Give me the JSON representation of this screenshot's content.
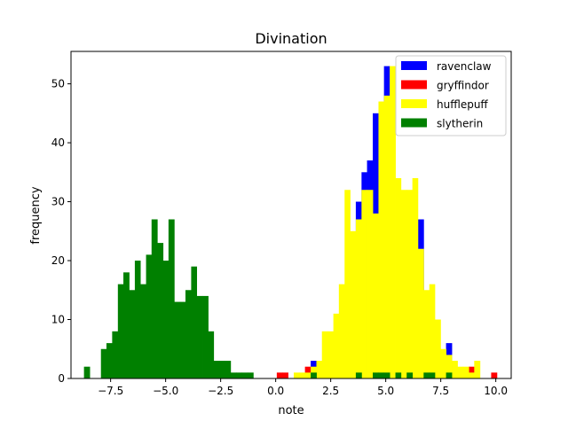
{
  "chart_data": {
    "type": "bar",
    "title": "Divination",
    "xlabel": "note",
    "ylabel": "frequency",
    "xlim": [
      -9.3,
      10.7
    ],
    "ylim": [
      0,
      55.5
    ],
    "x_ticks": [
      -7.5,
      -5.0,
      -2.5,
      0.0,
      2.5,
      5.0,
      7.5,
      10.0
    ],
    "x_tick_labels": [
      "−7.5",
      "−5.0",
      "−2.5",
      "0.0",
      "2.5",
      "5.0",
      "7.5",
      "10.0"
    ],
    "y_ticks": [
      0,
      10,
      20,
      30,
      40,
      50
    ],
    "y_tick_labels": [
      "0",
      "10",
      "20",
      "30",
      "40",
      "50"
    ],
    "legend_position": "upper-right",
    "grid": false,
    "histogram_style": "stacked step bars, overlapping",
    "series": [
      {
        "name": "ravenclaw",
        "color": "#0000ff",
        "bins": [
          {
            "x0": 1.59,
            "x1": 1.85,
            "count": 3
          },
          {
            "x0": 3.64,
            "x1": 3.9,
            "count": 30
          },
          {
            "x0": 3.9,
            "x1": 4.15,
            "count": 35
          },
          {
            "x0": 4.15,
            "x1": 4.41,
            "count": 37
          },
          {
            "x0": 4.41,
            "x1": 4.67,
            "count": 45
          },
          {
            "x0": 4.92,
            "x1": 5.18,
            "count": 53
          },
          {
            "x0": 6.46,
            "x1": 6.72,
            "count": 27
          },
          {
            "x0": 7.74,
            "x1": 8.0,
            "count": 6
          }
        ]
      },
      {
        "name": "gryffindor",
        "color": "#ff0000",
        "bins": [
          {
            "x0": 0.05,
            "x1": 0.31,
            "count": 1
          },
          {
            "x0": 0.31,
            "x1": 0.56,
            "count": 1
          },
          {
            "x0": 1.33,
            "x1": 1.59,
            "count": 2
          },
          {
            "x0": 8.77,
            "x1": 9.02,
            "count": 2
          },
          {
            "x0": 9.79,
            "x1": 10.05,
            "count": 1
          }
        ]
      },
      {
        "name": "hufflepuff",
        "color": "#ffff00",
        "bins": [
          {
            "x0": 0.82,
            "x1": 1.08,
            "count": 1
          },
          {
            "x0": 1.08,
            "x1": 1.33,
            "count": 1
          },
          {
            "x0": 1.33,
            "x1": 1.59,
            "count": 1
          },
          {
            "x0": 1.59,
            "x1": 1.85,
            "count": 2
          },
          {
            "x0": 1.85,
            "x1": 2.1,
            "count": 3
          },
          {
            "x0": 2.1,
            "x1": 2.36,
            "count": 8
          },
          {
            "x0": 2.36,
            "x1": 2.62,
            "count": 8
          },
          {
            "x0": 2.62,
            "x1": 2.87,
            "count": 11
          },
          {
            "x0": 2.87,
            "x1": 3.13,
            "count": 16
          },
          {
            "x0": 3.13,
            "x1": 3.38,
            "count": 32
          },
          {
            "x0": 3.38,
            "x1": 3.64,
            "count": 25
          },
          {
            "x0": 3.64,
            "x1": 3.9,
            "count": 27
          },
          {
            "x0": 3.9,
            "x1": 4.15,
            "count": 32
          },
          {
            "x0": 4.15,
            "x1": 4.41,
            "count": 32
          },
          {
            "x0": 4.41,
            "x1": 4.67,
            "count": 28
          },
          {
            "x0": 4.67,
            "x1": 4.92,
            "count": 47
          },
          {
            "x0": 4.92,
            "x1": 5.18,
            "count": 48
          },
          {
            "x0": 5.18,
            "x1": 5.44,
            "count": 53
          },
          {
            "x0": 5.44,
            "x1": 5.69,
            "count": 34
          },
          {
            "x0": 5.69,
            "x1": 5.95,
            "count": 32
          },
          {
            "x0": 5.95,
            "x1": 6.21,
            "count": 32
          },
          {
            "x0": 6.21,
            "x1": 6.46,
            "count": 34
          },
          {
            "x0": 6.46,
            "x1": 6.72,
            "count": 22
          },
          {
            "x0": 6.72,
            "x1": 6.98,
            "count": 15
          },
          {
            "x0": 6.98,
            "x1": 7.23,
            "count": 16
          },
          {
            "x0": 7.23,
            "x1": 7.49,
            "count": 10
          },
          {
            "x0": 7.49,
            "x1": 7.74,
            "count": 5
          },
          {
            "x0": 7.74,
            "x1": 8.0,
            "count": 4
          },
          {
            "x0": 8.0,
            "x1": 8.26,
            "count": 3
          },
          {
            "x0": 8.26,
            "x1": 8.51,
            "count": 2
          },
          {
            "x0": 8.51,
            "x1": 8.77,
            "count": 2
          },
          {
            "x0": 8.77,
            "x1": 9.02,
            "count": 1
          },
          {
            "x0": 9.02,
            "x1": 9.28,
            "count": 3
          }
        ]
      },
      {
        "name": "slytherin",
        "color": "#008000",
        "bins": [
          {
            "x0": -8.71,
            "x1": -8.45,
            "count": 2
          },
          {
            "x0": -7.94,
            "x1": -7.69,
            "count": 5
          },
          {
            "x0": -7.69,
            "x1": -7.43,
            "count": 6
          },
          {
            "x0": -7.43,
            "x1": -7.17,
            "count": 8
          },
          {
            "x0": -7.17,
            "x1": -6.92,
            "count": 16
          },
          {
            "x0": -6.92,
            "x1": -6.66,
            "count": 18
          },
          {
            "x0": -6.66,
            "x1": -6.4,
            "count": 15
          },
          {
            "x0": -6.4,
            "x1": -6.15,
            "count": 20
          },
          {
            "x0": -6.15,
            "x1": -5.89,
            "count": 16
          },
          {
            "x0": -5.89,
            "x1": -5.64,
            "count": 21
          },
          {
            "x0": -5.64,
            "x1": -5.38,
            "count": 27
          },
          {
            "x0": -5.38,
            "x1": -5.12,
            "count": 23
          },
          {
            "x0": -5.12,
            "x1": -4.87,
            "count": 20
          },
          {
            "x0": -4.87,
            "x1": -4.61,
            "count": 27
          },
          {
            "x0": -4.61,
            "x1": -4.35,
            "count": 13
          },
          {
            "x0": -4.35,
            "x1": -4.1,
            "count": 13
          },
          {
            "x0": -4.1,
            "x1": -3.84,
            "count": 15
          },
          {
            "x0": -3.84,
            "x1": -3.59,
            "count": 19
          },
          {
            "x0": -3.59,
            "x1": -3.33,
            "count": 14
          },
          {
            "x0": -3.33,
            "x1": -3.07,
            "count": 14
          },
          {
            "x0": -3.07,
            "x1": -2.82,
            "count": 8
          },
          {
            "x0": -2.82,
            "x1": -2.56,
            "count": 3
          },
          {
            "x0": -2.56,
            "x1": -2.31,
            "count": 3
          },
          {
            "x0": -2.31,
            "x1": -2.05,
            "count": 3
          },
          {
            "x0": -2.05,
            "x1": -1.79,
            "count": 1
          },
          {
            "x0": -1.79,
            "x1": -1.54,
            "count": 1
          },
          {
            "x0": -1.54,
            "x1": -1.28,
            "count": 1
          },
          {
            "x0": -1.28,
            "x1": -1.02,
            "count": 1
          },
          {
            "x0": 1.59,
            "x1": 1.85,
            "count": 1
          },
          {
            "x0": 3.64,
            "x1": 3.9,
            "count": 1
          },
          {
            "x0": 4.41,
            "x1": 4.67,
            "count": 1
          },
          {
            "x0": 4.67,
            "x1": 4.92,
            "count": 1
          },
          {
            "x0": 4.92,
            "x1": 5.18,
            "count": 1
          },
          {
            "x0": 5.44,
            "x1": 5.69,
            "count": 1
          },
          {
            "x0": 5.95,
            "x1": 6.21,
            "count": 1
          },
          {
            "x0": 6.72,
            "x1": 6.98,
            "count": 1
          },
          {
            "x0": 6.98,
            "x1": 7.23,
            "count": 1
          },
          {
            "x0": 7.74,
            "x1": 8.0,
            "count": 1
          }
        ]
      }
    ]
  }
}
